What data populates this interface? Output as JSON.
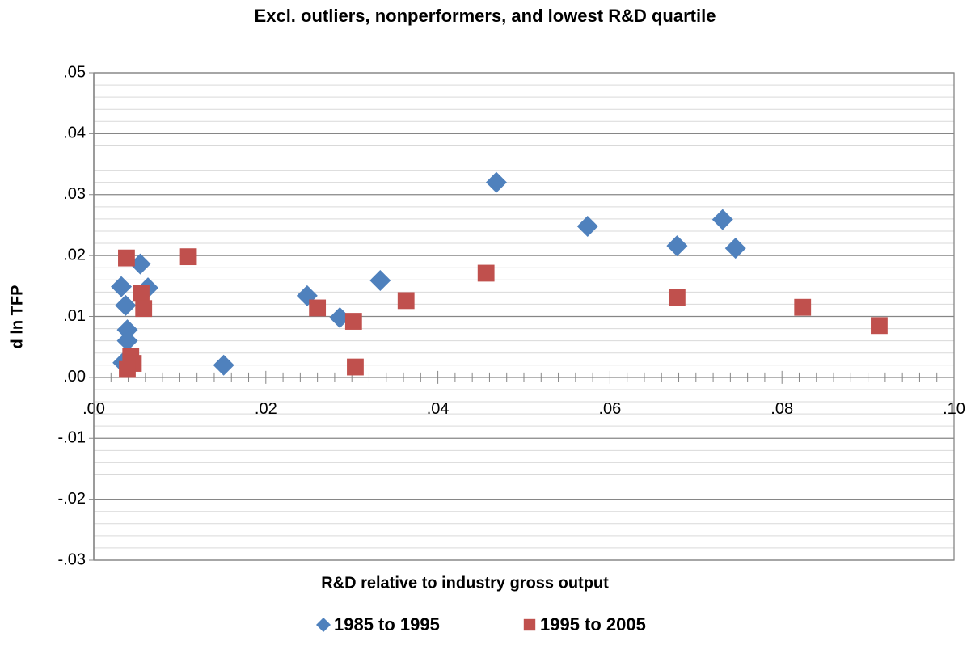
{
  "chart_data": {
    "type": "scatter",
    "title": "Excl. outliers, nonperformers, and lowest R&D quartile",
    "x_label": "R&D relative to industry gross output",
    "y_label": "d ln TFP",
    "xlim": [
      0,
      0.1
    ],
    "ylim": [
      -0.03,
      0.05
    ],
    "xticks": [
      {
        "value": 0,
        "label": ".00"
      },
      {
        "value": 0.02,
        "label": ".02"
      },
      {
        "value": 0.04,
        "label": ".04"
      },
      {
        "value": 0.06,
        "label": ".06"
      },
      {
        "value": 0.08,
        "label": ".08"
      },
      {
        "value": 0.1,
        "label": ".10"
      }
    ],
    "yticks": [
      {
        "value": -0.03,
        "label": "-.03"
      },
      {
        "value": -0.02,
        "label": "-.02"
      },
      {
        "value": -0.01,
        "label": "-.01"
      },
      {
        "value": 0,
        "label": ".00"
      },
      {
        "value": 0.01,
        "label": ".01"
      },
      {
        "value": 0.02,
        "label": ".02"
      },
      {
        "value": 0.03,
        "label": ".03"
      },
      {
        "value": 0.04,
        "label": ".04"
      },
      {
        "value": 0.05,
        "label": ".05"
      }
    ],
    "grid": true,
    "legend": "bottom",
    "series": [
      {
        "name": "1985 to 1995",
        "color": "#4f81bd",
        "marker": "diamond",
        "x": [
          0.0032,
          0.0037,
          0.0054,
          0.0063,
          0.0039,
          0.0039,
          0.0034,
          0.0151,
          0.0248,
          0.0286,
          0.0333,
          0.0468,
          0.0574,
          0.0678,
          0.0731,
          0.0746
        ],
        "values": [
          0.0149,
          0.0118,
          0.0186,
          0.0147,
          0.0078,
          0.006,
          0.0024,
          0.002,
          0.0134,
          0.0098,
          0.0159,
          0.032,
          0.0248,
          0.0216,
          0.0259,
          0.0212
        ]
      },
      {
        "name": "1995 to 2005",
        "color": "#c0504d",
        "marker": "square",
        "x": [
          0.0038,
          0.011,
          0.0055,
          0.0058,
          0.0043,
          0.0046,
          0.0039,
          0.026,
          0.0302,
          0.0304,
          0.0363,
          0.0456,
          0.0678,
          0.0824,
          0.0913
        ],
        "values": [
          0.0196,
          0.0198,
          0.0138,
          0.0113,
          0.0034,
          0.0023,
          0.0013,
          0.0114,
          0.0092,
          0.0017,
          0.0126,
          0.0171,
          0.0131,
          0.0115,
          0.0085
        ]
      }
    ]
  }
}
